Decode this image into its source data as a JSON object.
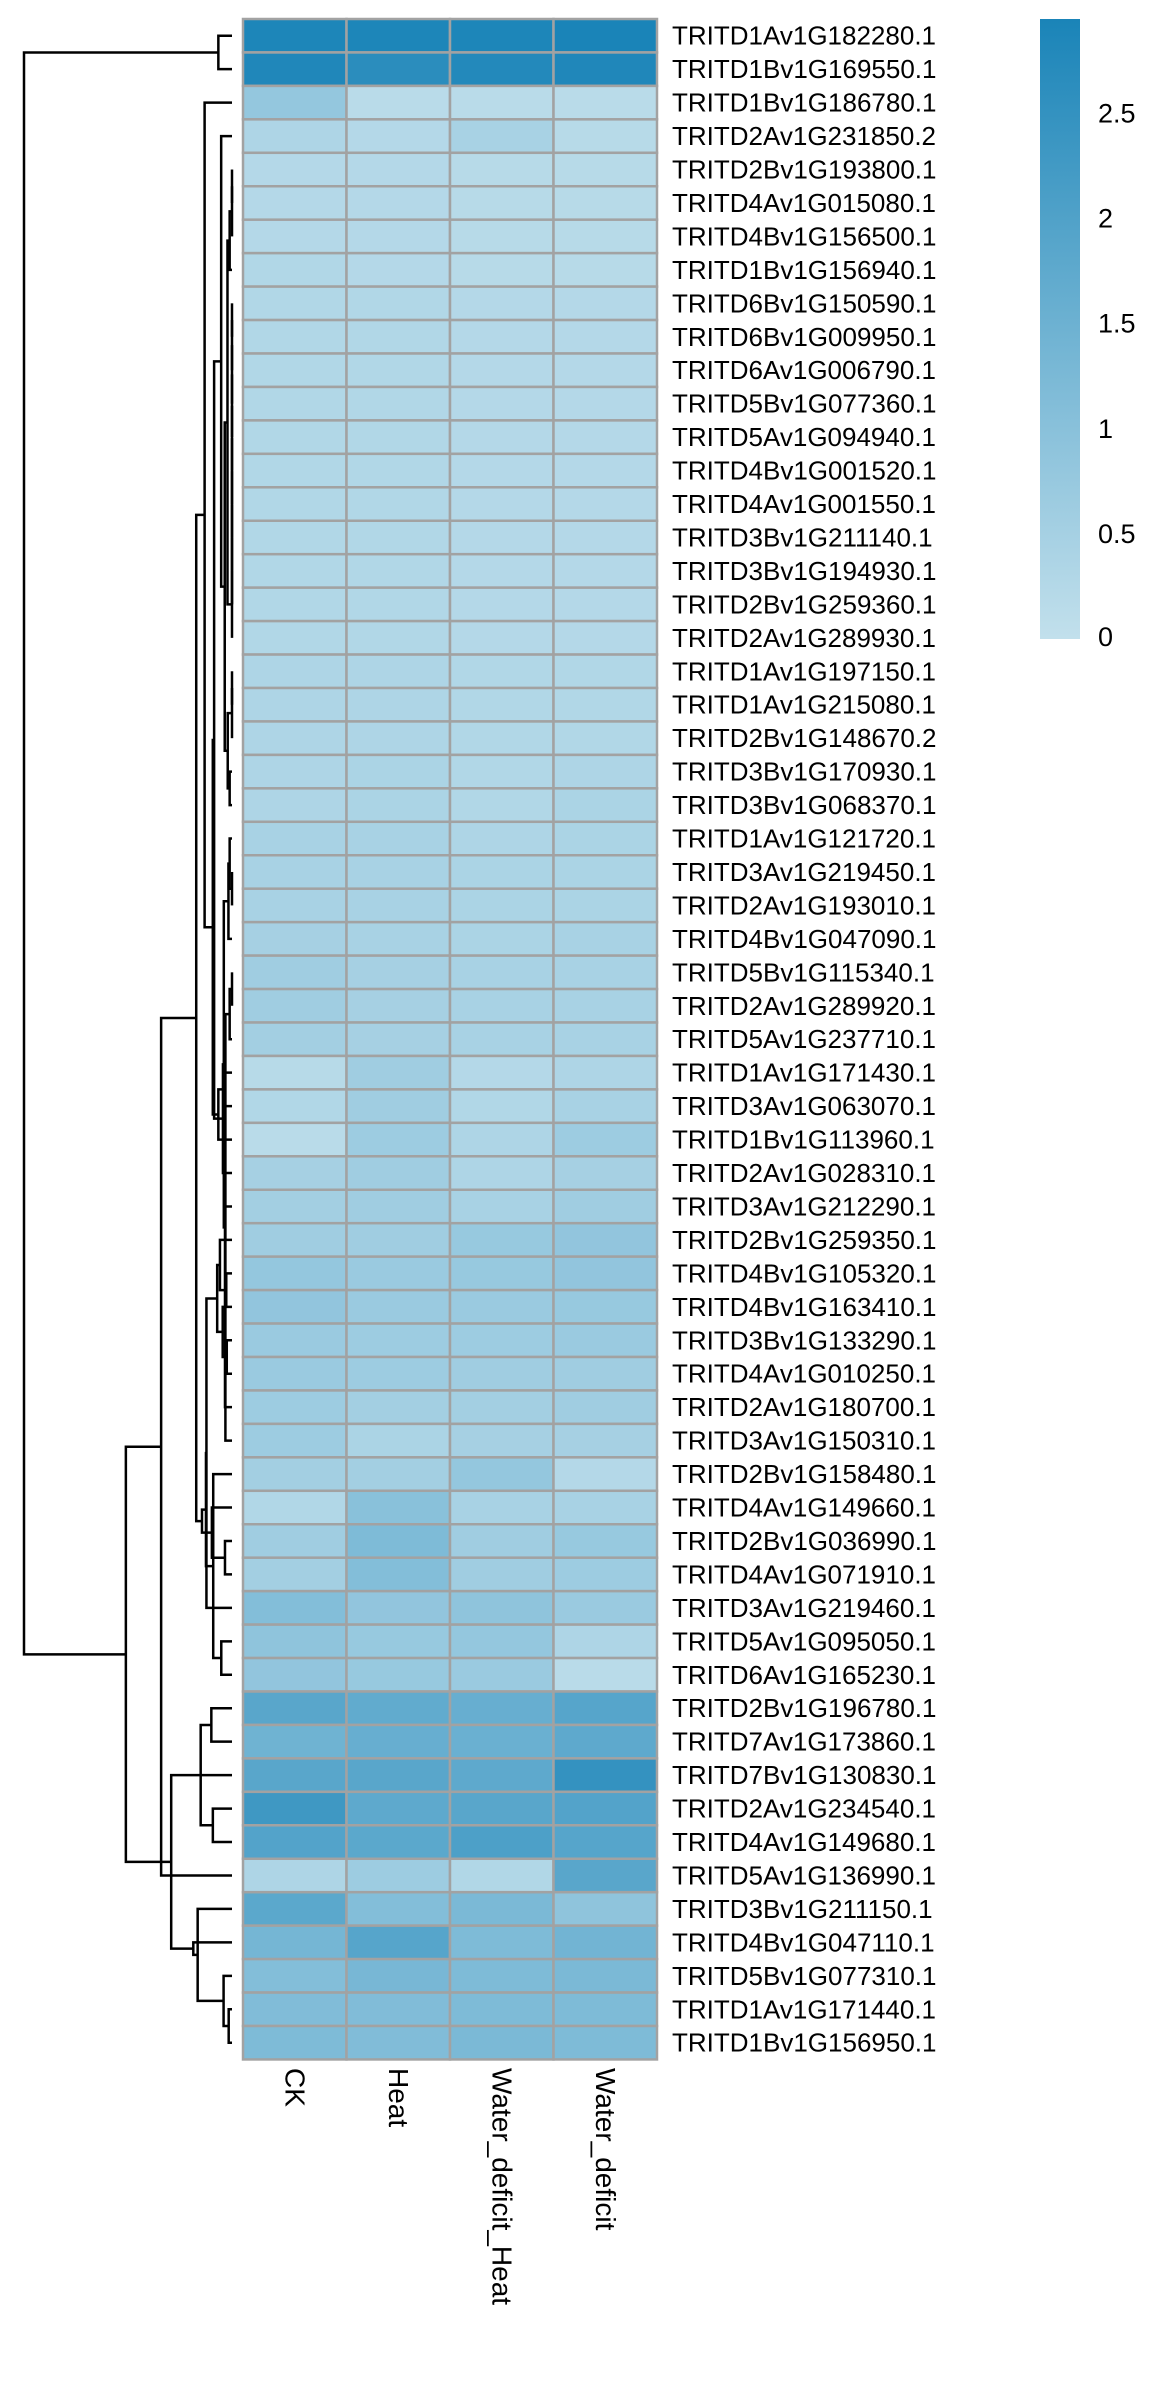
{
  "chart_data": {
    "type": "heatmap",
    "columns": [
      "CK",
      "Heat",
      "Water_deficit_Heat",
      "Water_deficit"
    ],
    "rows": [
      "TRITD1Av1G182280.1",
      "TRITD1Bv1G169550.1",
      "TRITD1Bv1G186780.1",
      "TRITD2Av1G231850.2",
      "TRITD2Bv1G193800.1",
      "TRITD4Av1G015080.1",
      "TRITD4Bv1G156500.1",
      "TRITD1Bv1G156940.1",
      "TRITD6Bv1G150590.1",
      "TRITD6Bv1G009950.1",
      "TRITD6Av1G006790.1",
      "TRITD5Bv1G077360.1",
      "TRITD5Av1G094940.1",
      "TRITD4Bv1G001520.1",
      "TRITD4Av1G001550.1",
      "TRITD3Bv1G211140.1",
      "TRITD3Bv1G194930.1",
      "TRITD2Bv1G259360.1",
      "TRITD2Av1G289930.1",
      "TRITD1Av1G197150.1",
      "TRITD1Av1G215080.1",
      "TRITD2Bv1G148670.2",
      "TRITD3Bv1G170930.1",
      "TRITD3Bv1G068370.1",
      "TRITD1Av1G121720.1",
      "TRITD3Av1G219450.1",
      "TRITD2Av1G193010.1",
      "TRITD4Bv1G047090.1",
      "TRITD5Bv1G115340.1",
      "TRITD2Av1G289920.1",
      "TRITD5Av1G237710.1",
      "TRITD1Av1G171430.1",
      "TRITD3Av1G063070.1",
      "TRITD1Bv1G113960.1",
      "TRITD2Av1G028310.1",
      "TRITD3Av1G212290.1",
      "TRITD2Bv1G259350.1",
      "TRITD4Bv1G105320.1",
      "TRITD4Bv1G163410.1",
      "TRITD3Bv1G133290.1",
      "TRITD4Av1G010250.1",
      "TRITD2Av1G180700.1",
      "TRITD3Av1G150310.1",
      "TRITD2Bv1G158480.1",
      "TRITD4Av1G149660.1",
      "TRITD2Bv1G036990.1",
      "TRITD4Av1G071910.1",
      "TRITD3Av1G219460.1",
      "TRITD5Av1G095050.1",
      "TRITD6Av1G165230.1",
      "TRITD2Bv1G196780.1",
      "TRITD7Av1G173860.1",
      "TRITD7Bv1G130830.1",
      "TRITD2Av1G234540.1",
      "TRITD4Av1G149680.1",
      "TRITD5Av1G136990.1",
      "TRITD3Bv1G211150.1",
      "TRITD4Bv1G047110.1",
      "TRITD5Bv1G077310.1",
      "TRITD1Av1G171440.1",
      "TRITD1Bv1G156950.1"
    ],
    "values": [
      [
        2.9,
        2.9,
        2.9,
        2.95
      ],
      [
        2.85,
        2.65,
        2.8,
        2.85
      ],
      [
        0.8,
        0.15,
        0.15,
        0.15
      ],
      [
        0.35,
        0.25,
        0.45,
        0.2
      ],
      [
        0.25,
        0.25,
        0.2,
        0.2
      ],
      [
        0.25,
        0.25,
        0.2,
        0.2
      ],
      [
        0.25,
        0.25,
        0.2,
        0.2
      ],
      [
        0.3,
        0.25,
        0.2,
        0.2
      ],
      [
        0.3,
        0.3,
        0.25,
        0.25
      ],
      [
        0.3,
        0.3,
        0.25,
        0.25
      ],
      [
        0.3,
        0.3,
        0.25,
        0.25
      ],
      [
        0.3,
        0.3,
        0.25,
        0.25
      ],
      [
        0.3,
        0.3,
        0.25,
        0.25
      ],
      [
        0.3,
        0.3,
        0.25,
        0.25
      ],
      [
        0.3,
        0.3,
        0.25,
        0.25
      ],
      [
        0.3,
        0.3,
        0.25,
        0.25
      ],
      [
        0.3,
        0.3,
        0.25,
        0.25
      ],
      [
        0.3,
        0.3,
        0.25,
        0.25
      ],
      [
        0.3,
        0.3,
        0.25,
        0.25
      ],
      [
        0.35,
        0.35,
        0.3,
        0.3
      ],
      [
        0.35,
        0.35,
        0.3,
        0.3
      ],
      [
        0.35,
        0.35,
        0.3,
        0.3
      ],
      [
        0.35,
        0.4,
        0.3,
        0.35
      ],
      [
        0.35,
        0.4,
        0.3,
        0.4
      ],
      [
        0.45,
        0.45,
        0.35,
        0.4
      ],
      [
        0.45,
        0.45,
        0.4,
        0.4
      ],
      [
        0.45,
        0.45,
        0.4,
        0.4
      ],
      [
        0.5,
        0.45,
        0.4,
        0.45
      ],
      [
        0.6,
        0.5,
        0.45,
        0.45
      ],
      [
        0.6,
        0.5,
        0.45,
        0.45
      ],
      [
        0.55,
        0.5,
        0.45,
        0.45
      ],
      [
        0.2,
        0.6,
        0.25,
        0.35
      ],
      [
        0.3,
        0.6,
        0.3,
        0.45
      ],
      [
        0.15,
        0.65,
        0.35,
        0.65
      ],
      [
        0.5,
        0.6,
        0.35,
        0.5
      ],
      [
        0.55,
        0.6,
        0.45,
        0.6
      ],
      [
        0.6,
        0.6,
        0.75,
        0.85
      ],
      [
        0.8,
        0.7,
        0.75,
        0.85
      ],
      [
        0.85,
        0.7,
        0.7,
        0.75
      ],
      [
        0.7,
        0.65,
        0.65,
        0.7
      ],
      [
        0.7,
        0.65,
        0.6,
        0.6
      ],
      [
        0.65,
        0.55,
        0.55,
        0.6
      ],
      [
        0.65,
        0.4,
        0.5,
        0.5
      ],
      [
        0.55,
        0.55,
        0.8,
        0.25
      ],
      [
        0.3,
        1.0,
        0.45,
        0.45
      ],
      [
        0.6,
        1.2,
        0.6,
        0.75
      ],
      [
        0.55,
        1.1,
        0.6,
        0.65
      ],
      [
        1.1,
        0.85,
        0.9,
        0.7
      ],
      [
        0.9,
        0.75,
        0.8,
        0.35
      ],
      [
        0.85,
        0.75,
        0.7,
        0.15
      ],
      [
        1.85,
        1.7,
        1.6,
        1.9
      ],
      [
        1.45,
        1.6,
        1.55,
        1.75
      ],
      [
        1.85,
        1.85,
        1.75,
        2.5
      ],
      [
        2.3,
        1.75,
        1.85,
        1.95
      ],
      [
        1.95,
        1.8,
        2.05,
        1.9
      ],
      [
        0.35,
        0.65,
        0.3,
        1.85
      ],
      [
        1.8,
        1.1,
        1.25,
        0.9
      ],
      [
        1.35,
        1.9,
        1.2,
        1.4
      ],
      [
        1.1,
        1.3,
        1.2,
        1.25
      ],
      [
        1.15,
        1.15,
        1.2,
        1.2
      ],
      [
        1.2,
        1.15,
        1.25,
        1.2
      ]
    ],
    "color_scale": {
      "min_color": "#c2e0ec",
      "max_color": "#1a84b8",
      "grid_color": "#a2a2a2",
      "domain": [
        0,
        2.95
      ],
      "ticks": [
        "0",
        "0.5",
        "1",
        "1.5",
        "2",
        "2.5"
      ],
      "tick_values": [
        0,
        0.5,
        1,
        1.5,
        2,
        2.5
      ]
    },
    "dendrogram": "rows-left",
    "legend_placement": "top-right",
    "grid": true
  }
}
